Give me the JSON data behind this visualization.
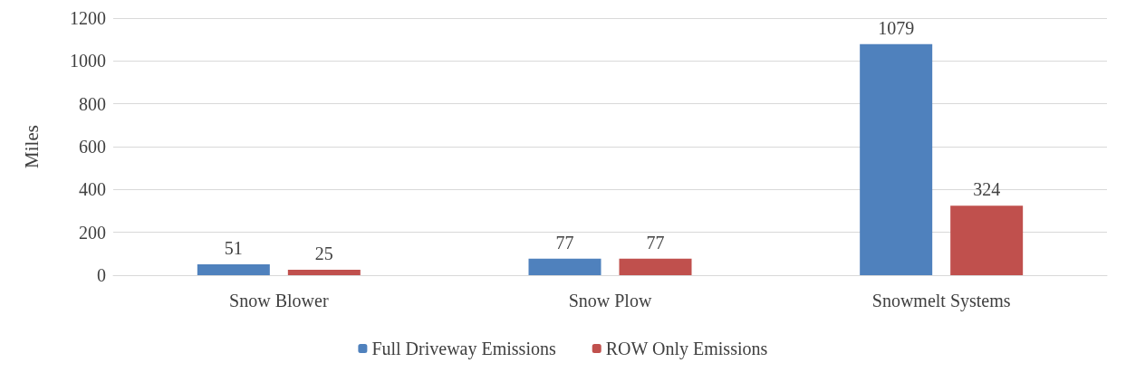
{
  "chart_data": {
    "type": "bar",
    "ylabel": "Miles",
    "categories": [
      "Snow Blower",
      "Snow Plow",
      "Snowmelt Systems"
    ],
    "series": [
      {
        "name": "Full Driveway Emissions",
        "color": "#4f81bd",
        "values": [
          51,
          77,
          1079
        ]
      },
      {
        "name": "ROW Only Emissions",
        "color": "#c0504d",
        "values": [
          25,
          77,
          324
        ]
      }
    ],
    "ylim": [
      0,
      1200
    ],
    "yticks": [
      0,
      200,
      400,
      600,
      800,
      1000,
      1200
    ],
    "grid": "y",
    "legend": "bottom",
    "data_labels": true
  }
}
